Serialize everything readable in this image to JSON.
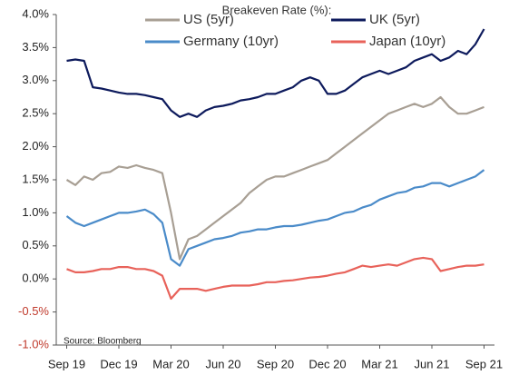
{
  "chart_data": {
    "type": "line",
    "title": "Breakeven Rate (%):",
    "source": "Source: Bloomberg",
    "x": [
      0,
      0.5,
      1,
      1.5,
      2,
      2.5,
      3,
      3.5,
      4,
      4.5,
      5,
      5.5,
      6,
      6.5,
      7,
      7.5,
      8,
      8.5,
      9,
      9.5,
      10,
      10.5,
      11,
      11.5,
      12,
      12.5,
      13,
      13.5,
      14,
      14.5,
      15,
      15.5,
      16,
      16.5,
      17,
      17.5,
      18,
      18.5,
      19,
      19.5,
      20,
      20.5,
      21,
      21.5,
      22,
      22.5,
      23,
      23.5,
      24
    ],
    "series": [
      {
        "name": "US (5yr)",
        "color": "#a89f94",
        "values": [
          1.5,
          1.42,
          1.55,
          1.5,
          1.6,
          1.62,
          1.7,
          1.68,
          1.72,
          1.68,
          1.65,
          1.6,
          1.0,
          0.3,
          0.6,
          0.65,
          0.75,
          0.85,
          0.95,
          1.05,
          1.15,
          1.3,
          1.4,
          1.5,
          1.55,
          1.55,
          1.6,
          1.65,
          1.7,
          1.75,
          1.8,
          1.9,
          2.0,
          2.1,
          2.2,
          2.3,
          2.4,
          2.5,
          2.55,
          2.6,
          2.65,
          2.6,
          2.65,
          2.75,
          2.6,
          2.5,
          2.5,
          2.55,
          2.6
        ]
      },
      {
        "name": "UK (5yr)",
        "color": "#0d1a5c",
        "values": [
          3.3,
          3.32,
          3.3,
          2.9,
          2.88,
          2.85,
          2.82,
          2.8,
          2.8,
          2.78,
          2.75,
          2.72,
          2.55,
          2.45,
          2.5,
          2.45,
          2.55,
          2.6,
          2.62,
          2.65,
          2.7,
          2.72,
          2.75,
          2.8,
          2.8,
          2.85,
          2.9,
          3.0,
          3.05,
          3.0,
          2.8,
          2.8,
          2.85,
          2.95,
          3.05,
          3.1,
          3.15,
          3.1,
          3.15,
          3.2,
          3.3,
          3.35,
          3.4,
          3.3,
          3.35,
          3.45,
          3.4,
          3.55,
          3.78
        ]
      },
      {
        "name": "Germany (10yr)",
        "color": "#4a8bc9",
        "values": [
          0.95,
          0.85,
          0.8,
          0.85,
          0.9,
          0.95,
          1.0,
          1.0,
          1.02,
          1.05,
          0.98,
          0.85,
          0.3,
          0.2,
          0.45,
          0.5,
          0.55,
          0.6,
          0.62,
          0.65,
          0.7,
          0.72,
          0.75,
          0.75,
          0.78,
          0.8,
          0.8,
          0.82,
          0.85,
          0.88,
          0.9,
          0.95,
          1.0,
          1.02,
          1.08,
          1.12,
          1.2,
          1.25,
          1.3,
          1.32,
          1.38,
          1.4,
          1.45,
          1.45,
          1.4,
          1.45,
          1.5,
          1.55,
          1.65
        ]
      },
      {
        "name": "Japan (10yr)",
        "color": "#e8625a",
        "values": [
          0.15,
          0.1,
          0.1,
          0.12,
          0.15,
          0.15,
          0.18,
          0.18,
          0.15,
          0.15,
          0.12,
          0.05,
          -0.3,
          -0.15,
          -0.15,
          -0.15,
          -0.18,
          -0.15,
          -0.12,
          -0.1,
          -0.1,
          -0.1,
          -0.08,
          -0.05,
          -0.05,
          -0.03,
          -0.02,
          0.0,
          0.02,
          0.03,
          0.05,
          0.08,
          0.1,
          0.15,
          0.2,
          0.18,
          0.2,
          0.22,
          0.2,
          0.25,
          0.3,
          0.32,
          0.3,
          0.12,
          0.15,
          0.18,
          0.2,
          0.2,
          0.22
        ]
      }
    ],
    "xlim": [
      -0.6,
      24.6
    ],
    "xticks": [
      {
        "value": 0,
        "label": "Sep 19"
      },
      {
        "value": 3,
        "label": "Dec 19"
      },
      {
        "value": 6,
        "label": "Mar 20"
      },
      {
        "value": 9,
        "label": "Jun 20"
      },
      {
        "value": 12,
        "label": "Sep 20"
      },
      {
        "value": 15,
        "label": "Dec 20"
      },
      {
        "value": 18,
        "label": "Mar 21"
      },
      {
        "value": 21,
        "label": "Jun 21"
      },
      {
        "value": 24,
        "label": "Sep 21"
      }
    ],
    "ylim": [
      -1,
      4
    ],
    "yticks": [
      {
        "value": -1,
        "label": "-1.0%"
      },
      {
        "value": -0.5,
        "label": "-0.5%"
      },
      {
        "value": 0,
        "label": "0.0%"
      },
      {
        "value": 0.5,
        "label": "0.5%"
      },
      {
        "value": 1,
        "label": "1.0%"
      },
      {
        "value": 1.5,
        "label": "1.5%"
      },
      {
        "value": 2,
        "label": "2.0%"
      },
      {
        "value": 2.5,
        "label": "2.5%"
      },
      {
        "value": 3,
        "label": "3.0%"
      },
      {
        "value": 3.5,
        "label": "3.5%"
      },
      {
        "value": 4,
        "label": "4.0%"
      }
    ],
    "grid": false
  }
}
